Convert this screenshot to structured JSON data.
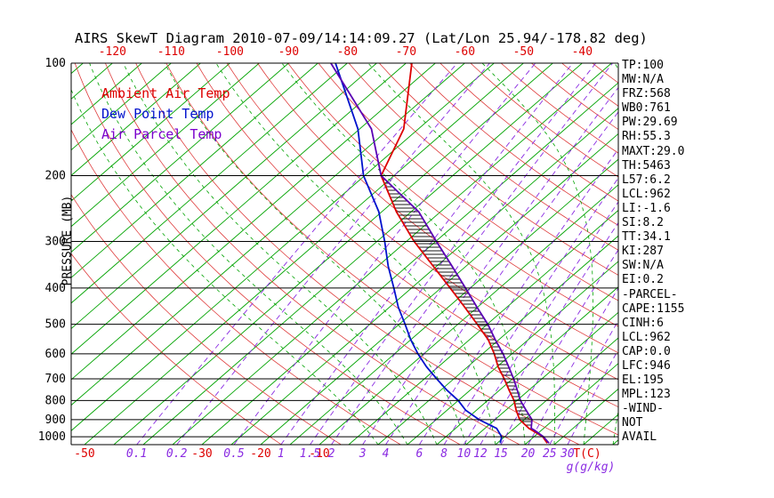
{
  "title": "AIRS SkewT Diagram 2010-07-09/14:14:09.27 (Lat/Lon 25.94/-178.82 deg)",
  "y_axis_title": "PRESSURE (MB)",
  "legend": [
    {
      "label": "Ambient Air Temp",
      "color": "#dd0000"
    },
    {
      "label": "Dew Point Temp",
      "color": "#0011cc"
    },
    {
      "label": "Air Parcel Temp",
      "color": "#7a00cc"
    }
  ],
  "stats": [
    "TP:100",
    "MW:N/A",
    "FRZ:568",
    "WB0:761",
    "PW:29.69",
    "RH:55.3",
    "MAXT:29.0",
    "TH:5463",
    "L57:6.2",
    "LCL:962",
    "LI:-1.6",
    "SI:8.2",
    "TT:34.1",
    "KI:287",
    "SW:N/A",
    "EI:0.2",
    "-PARCEL-",
    "CAPE:1155",
    "CINH:6",
    "LCL:962",
    "CAP:0.0",
    "LFC:946",
    "EL:195",
    "MPL:123",
    "-WIND-",
    "NOT",
    "AVAIL"
  ],
  "background": {
    "isotherm_color": "#00a300",
    "dry_adiabat_color": "#dd3333",
    "moist_adiabat_color": "#00a300",
    "mixing_ratio_color": "#8a2be2",
    "pressure_line_color": "#000000",
    "hatch_color": "#000000",
    "tick_label_red": "#dd0000"
  },
  "chart_data": {
    "type": "line",
    "variant": "skew-t-log-p",
    "title": "AIRS SkewT Diagram 2010-07-09/14:14:09.27 (Lat/Lon 25.94/-178.82 deg)",
    "xlabel": "T(C)",
    "ylabel": "PRESSURE (MB)",
    "axes": {
      "pressure_ticks_mb": [
        100,
        200,
        300,
        400,
        500,
        600,
        700,
        800,
        900,
        1000
      ],
      "pressure_range_mb": [
        100,
        1050
      ],
      "top_temp_ticks_c": [
        -120,
        -110,
        -100,
        -90,
        -80,
        -70,
        -60,
        -50,
        -40
      ],
      "bottom_temp_ticks_c": [
        -50,
        -30,
        -20,
        -10
      ],
      "temp_unit_label": "T(C)",
      "mixing_ratio_ticks_gkg": [
        0.1,
        0.2,
        0.5,
        1,
        1.5,
        2,
        3,
        4,
        6,
        8,
        10,
        12,
        15,
        20,
        25,
        30
      ],
      "mixing_ratio_unit_label": "g(g/kg)",
      "grid": true,
      "legend_position": "top-left-inside"
    },
    "series": [
      {
        "name": "Ambient Air Temp",
        "color": "#dd0000",
        "points_p_t": [
          [
            1040,
            28.5
          ],
          [
            1000,
            26.5
          ],
          [
            950,
            22.5
          ],
          [
            900,
            19.2
          ],
          [
            850,
            16.8
          ],
          [
            800,
            14.5
          ],
          [
            750,
            11.6
          ],
          [
            700,
            8.6
          ],
          [
            650,
            5.2
          ],
          [
            600,
            2.0
          ],
          [
            550,
            -1.8
          ],
          [
            500,
            -6.7
          ],
          [
            450,
            -12.2
          ],
          [
            400,
            -18.4
          ],
          [
            350,
            -25.5
          ],
          [
            300,
            -33.7
          ],
          [
            250,
            -42.5
          ],
          [
            200,
            -52.2
          ],
          [
            150,
            -57.5
          ],
          [
            100,
            -69.0
          ]
        ]
      },
      {
        "name": "Dew Point Temp",
        "color": "#0011cc",
        "points_p_t": [
          [
            1040,
            20.5
          ],
          [
            1000,
            19.5
          ],
          [
            950,
            17.0
          ],
          [
            900,
            12.3
          ],
          [
            850,
            8.2
          ],
          [
            800,
            5.0
          ],
          [
            750,
            1.0
          ],
          [
            700,
            -2.9
          ],
          [
            650,
            -7.0
          ],
          [
            600,
            -11.0
          ],
          [
            550,
            -15.0
          ],
          [
            500,
            -19.0
          ],
          [
            450,
            -23.5
          ],
          [
            400,
            -28.0
          ],
          [
            350,
            -33.2
          ],
          [
            300,
            -38.7
          ],
          [
            250,
            -45.5
          ],
          [
            200,
            -55.2
          ],
          [
            150,
            -65.3
          ],
          [
            100,
            -82.0
          ]
        ]
      },
      {
        "name": "Air Parcel Temp",
        "color": "#5a00b4",
        "points_p_t": [
          [
            1040,
            28.8
          ],
          [
            1000,
            26.6
          ],
          [
            962,
            23.9
          ],
          [
            950,
            22.9
          ],
          [
            900,
            21.3
          ],
          [
            850,
            18.5
          ],
          [
            800,
            15.6
          ],
          [
            750,
            13.0
          ],
          [
            700,
            10.2
          ],
          [
            650,
            7.0
          ],
          [
            600,
            3.5
          ],
          [
            550,
            -0.6
          ],
          [
            500,
            -4.9
          ],
          [
            450,
            -10.1
          ],
          [
            400,
            -15.8
          ],
          [
            350,
            -22.3
          ],
          [
            300,
            -29.9
          ],
          [
            250,
            -38.7
          ],
          [
            200,
            -52.2
          ],
          [
            150,
            -63.0
          ],
          [
            100,
            -82.8
          ]
        ]
      }
    ],
    "hatched_area": {
      "between": [
        "Air Parcel Temp",
        "Ambient Air Temp"
      ],
      "pressure_range_mb": [
        950,
        200
      ],
      "meaning": "CAPE/CINH region"
    }
  }
}
